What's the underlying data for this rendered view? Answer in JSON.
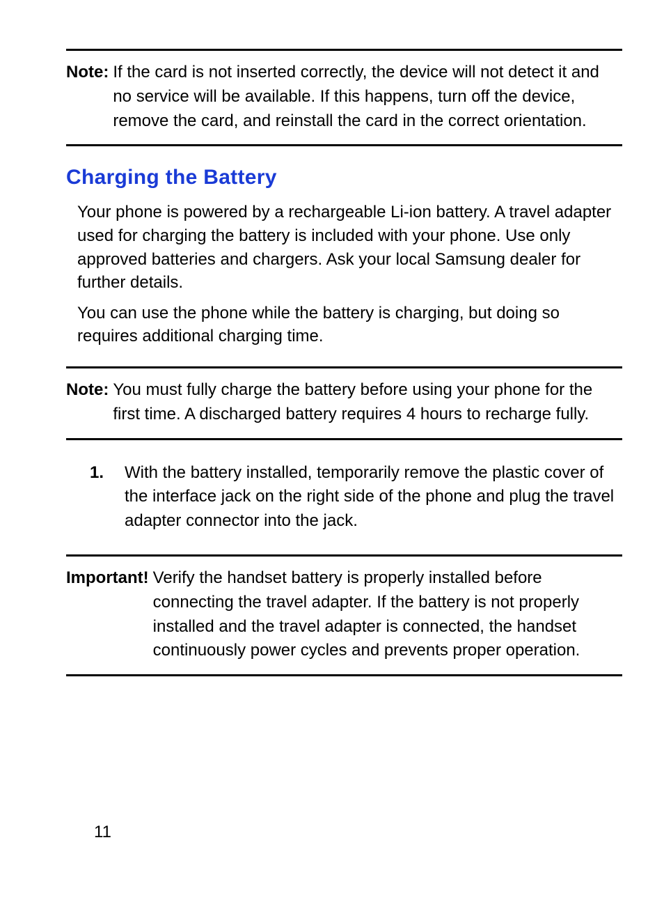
{
  "colors": {
    "heading_color": "#1a3bd6",
    "rule_color": "#000000",
    "text_color": "#000000",
    "background_color": "#ffffff"
  },
  "typography": {
    "body_fontsize": 24,
    "heading_fontsize": 30,
    "line_height": 1.45
  },
  "note1": {
    "label": "Note:",
    "text": "If the card is not inserted correctly, the device will not detect it and no service will be available. If this happens, turn off the device, remove the card, and reinstall the card in the correct orientation."
  },
  "section": {
    "heading": "Charging the Battery",
    "para1": "Your phone is powered by a rechargeable Li-ion battery. A travel adapter used for charging the battery is included with your phone. Use only approved batteries and chargers. Ask your local Samsung dealer for further details.",
    "para2": "You can use the phone while the battery is charging, but doing so requires additional charging time."
  },
  "note2": {
    "label": "Note:",
    "text": "You must fully charge the battery before using your phone for the first time. A discharged battery requires 4 hours to recharge fully."
  },
  "step1": {
    "num": "1.",
    "text": "With the battery installed, temporarily remove the plastic cover of the interface jack on the right side of the phone and plug the travel adapter connector into the jack."
  },
  "important": {
    "label": "Important!",
    "text": "Verify the handset battery is properly installed before connecting the travel adapter. If the battery is not properly installed and the travel adapter is connected, the handset continuously power cycles and prevents proper operation."
  },
  "page_number": "11"
}
